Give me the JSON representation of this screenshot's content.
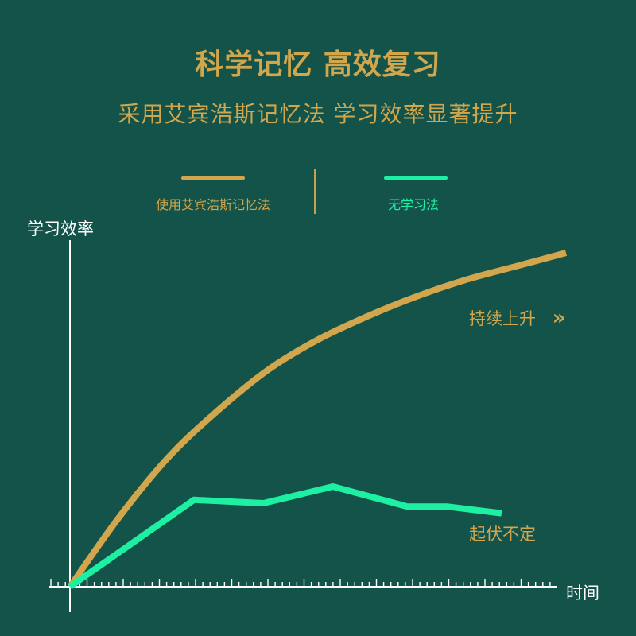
{
  "title": "科学记忆 高效复习",
  "subtitle": "采用艾宾浩斯记忆法 学习效率显著提升",
  "colors": {
    "background": "#13534a",
    "gold": "#d2a64c",
    "green": "#1ef0a3",
    "axis": "#ffffff"
  },
  "chart_data": {
    "type": "line",
    "ylabel": "学习效率",
    "xlabel": "时间",
    "legend_placement": "top",
    "grid": false,
    "series": [
      {
        "name": "使用艾宾浩斯记忆法",
        "color": "#d2a64c",
        "annotation": "持续上升",
        "x": [
          0,
          0.1,
          0.2,
          0.3,
          0.4,
          0.5,
          0.6,
          0.7,
          0.8,
          0.9,
          1.0
        ],
        "y": [
          0,
          0.21,
          0.39,
          0.53,
          0.65,
          0.74,
          0.81,
          0.87,
          0.92,
          0.96,
          1.0
        ]
      },
      {
        "name": "无学习法",
        "color": "#1ef0a3",
        "annotation": "起伏不定",
        "x": [
          0,
          0.25,
          0.39,
          0.53,
          0.68,
          0.76,
          0.87
        ],
        "y": [
          0,
          0.26,
          0.25,
          0.3,
          0.24,
          0.24,
          0.22
        ]
      }
    ]
  },
  "annotation_arrow": "»"
}
